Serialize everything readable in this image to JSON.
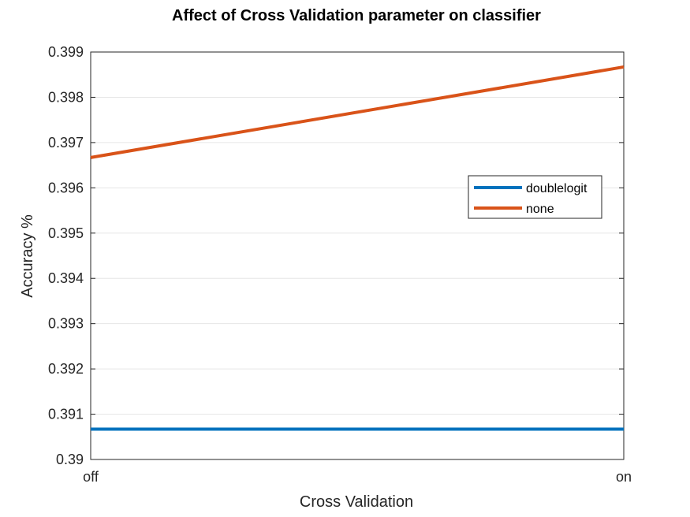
{
  "chart_data": {
    "type": "line",
    "title": "Affect of Cross Validation parameter on classifier",
    "xlabel": "Cross Validation",
    "ylabel": "Accuracy %",
    "categories": [
      "off",
      "on"
    ],
    "ylim": [
      0.39,
      0.399
    ],
    "yticks": [
      "0.39",
      "0.391",
      "0.392",
      "0.393",
      "0.394",
      "0.395",
      "0.396",
      "0.397",
      "0.398",
      "0.399"
    ],
    "grid": "horizontal",
    "legend_position": "right",
    "series": [
      {
        "name": "doublelogit",
        "values": [
          0.39067,
          0.39067
        ],
        "color": "#0072BD"
      },
      {
        "name": "none",
        "values": [
          0.39667,
          0.39867
        ],
        "color": "#D95319"
      }
    ]
  }
}
